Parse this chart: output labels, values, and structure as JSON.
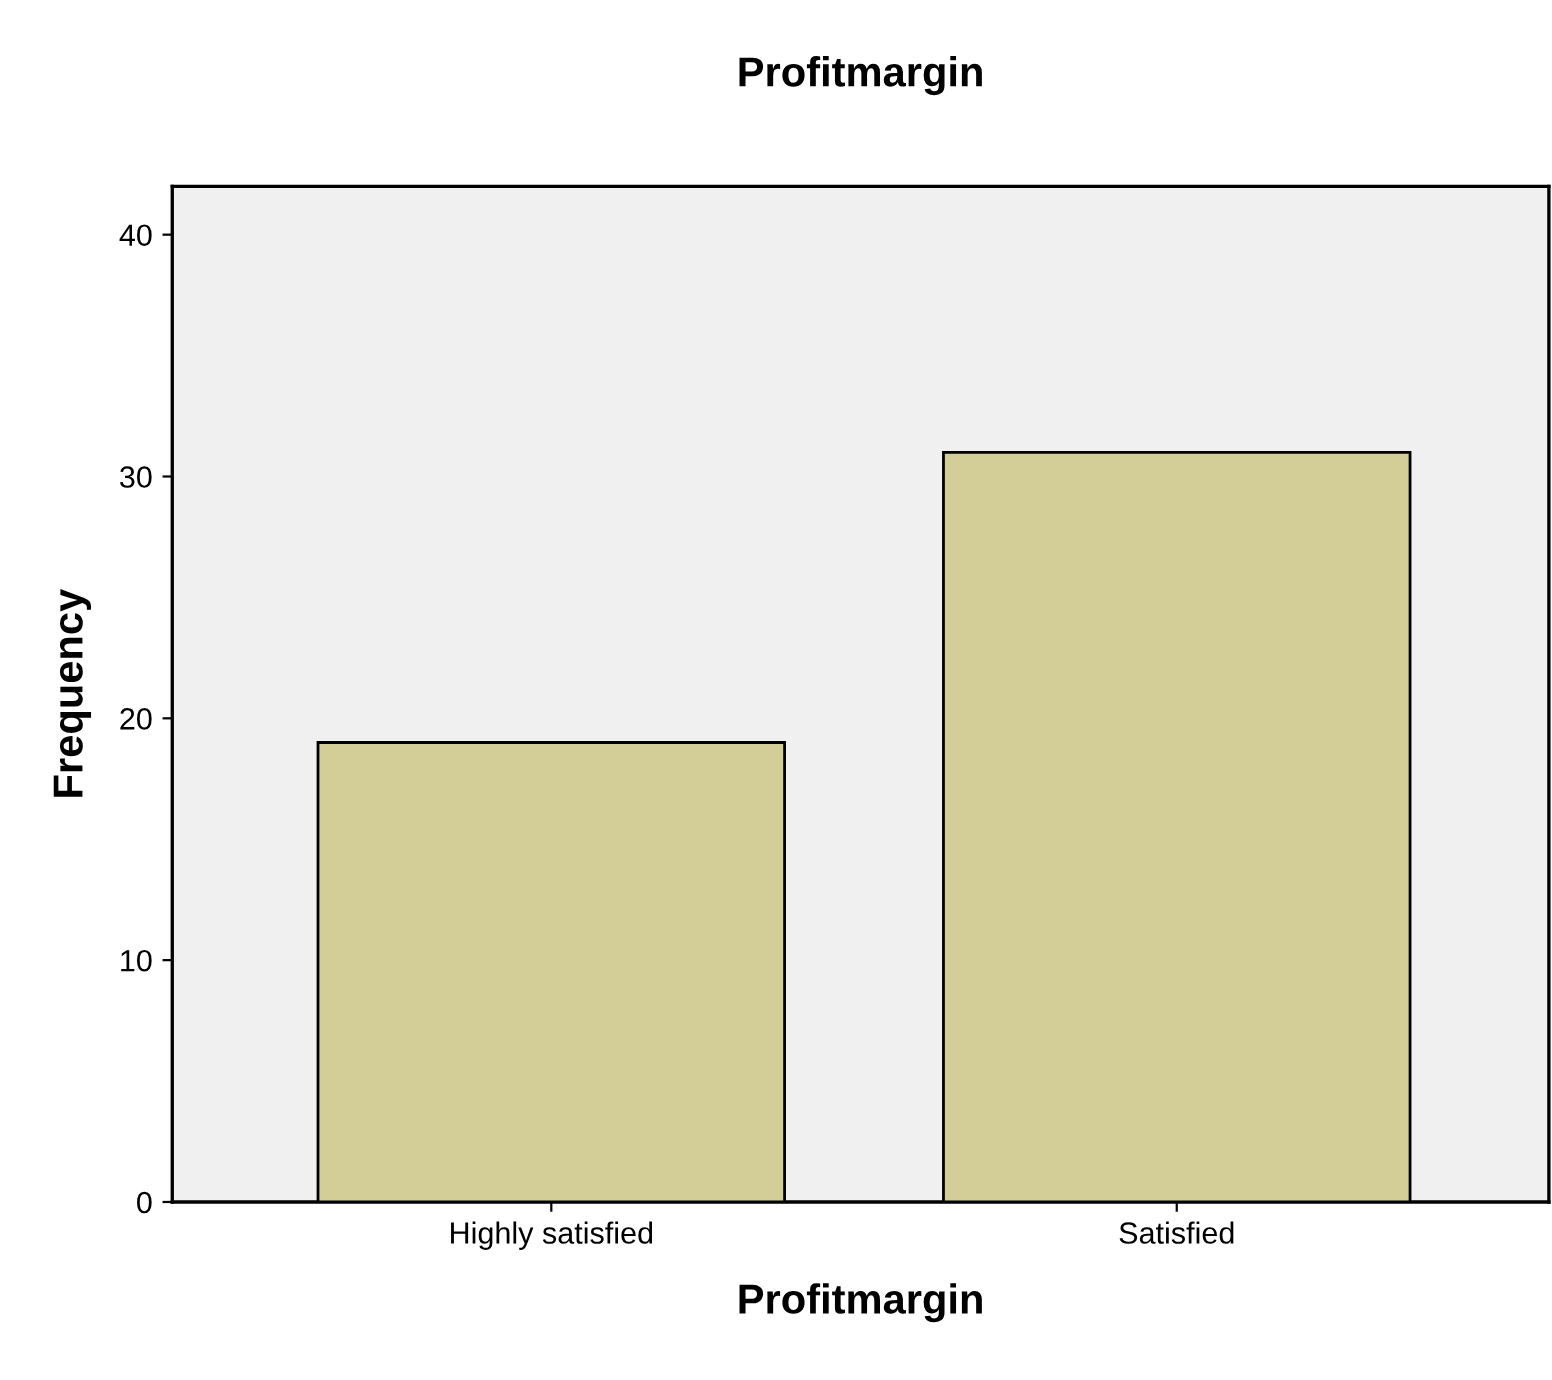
{
  "chart_data": {
    "type": "bar",
    "title": "Profitmargin",
    "xlabel": "Profitmargin",
    "ylabel": "Frequency",
    "categories": [
      "Highly satisfied",
      "Satisfied"
    ],
    "values": [
      19,
      31
    ],
    "color": "#d3ce97",
    "ylim": [
      0,
      42
    ],
    "yticks": [
      0,
      10,
      20,
      30,
      40
    ],
    "grid": false,
    "legend": false
  }
}
